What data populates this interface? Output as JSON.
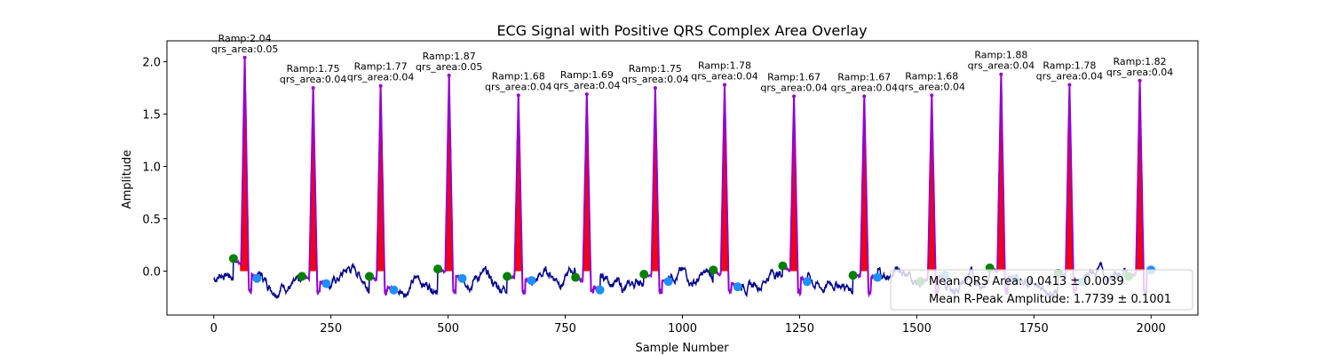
{
  "chart_data": {
    "type": "line",
    "title": "ECG Signal with Positive QRS Complex Area Overlay",
    "xlabel": "Sample Number",
    "ylabel": "Amplitude",
    "xlim": [
      -100,
      2100
    ],
    "ylim": [
      -0.42,
      2.2
    ],
    "xticks": [
      0,
      250,
      500,
      750,
      1000,
      1250,
      1500,
      1750,
      2000
    ],
    "xtick_labels": [
      "0",
      "250",
      "500",
      "750",
      "1000",
      "1250",
      "1500",
      "1750",
      "2000"
    ],
    "yticks": [
      0.0,
      0.5,
      1.0,
      1.5,
      2.0
    ],
    "ytick_labels": [
      "0.0",
      "0.5",
      "1.0",
      "1.5",
      "2.0"
    ],
    "grid": false,
    "series_colors": {
      "ecg": "#00008b",
      "qrs_segment": "#9400d3",
      "qrs_area": "#ff0000",
      "onset_marker": "#008000",
      "offset_marker": "#1e90ff"
    },
    "beats": [
      {
        "r_x": 66,
        "r_amp": 2.04,
        "qrs_area": 0.05,
        "ann": [
          "Ramp:2.04",
          "qrs_area:0.05"
        ],
        "on_x": 42,
        "on_y": 0.12,
        "off_x": 92,
        "off_y": -0.07
      },
      {
        "r_x": 212,
        "r_amp": 1.75,
        "qrs_area": 0.04,
        "ann": [
          "Ramp:1.75",
          "qrs_area:0.04"
        ],
        "on_x": 188,
        "on_y": -0.05,
        "off_x": 240,
        "off_y": -0.12
      },
      {
        "r_x": 356,
        "r_amp": 1.77,
        "qrs_area": 0.04,
        "ann": [
          "Ramp:1.77",
          "qrs_area:0.04"
        ],
        "on_x": 332,
        "on_y": -0.05,
        "off_x": 384,
        "off_y": -0.18
      },
      {
        "r_x": 502,
        "r_amp": 1.87,
        "qrs_area": 0.05,
        "ann": [
          "Ramp:1.87",
          "qrs_area:0.05"
        ],
        "on_x": 478,
        "on_y": 0.02,
        "off_x": 530,
        "off_y": -0.07
      },
      {
        "r_x": 650,
        "r_amp": 1.68,
        "qrs_area": 0.04,
        "ann": [
          "Ramp:1.68",
          "qrs_area:0.04"
        ],
        "on_x": 626,
        "on_y": -0.05,
        "off_x": 678,
        "off_y": -0.09
      },
      {
        "r_x": 796,
        "r_amp": 1.69,
        "qrs_area": 0.04,
        "ann": [
          "Ramp:1.69",
          "qrs_area:0.04"
        ],
        "on_x": 772,
        "on_y": -0.06,
        "off_x": 824,
        "off_y": -0.18
      },
      {
        "r_x": 942,
        "r_amp": 1.75,
        "qrs_area": 0.04,
        "ann": [
          "Ramp:1.75",
          "qrs_area:0.04"
        ],
        "on_x": 918,
        "on_y": -0.03,
        "off_x": 970,
        "off_y": -0.1
      },
      {
        "r_x": 1090,
        "r_amp": 1.78,
        "qrs_area": 0.04,
        "ann": [
          "Ramp:1.78",
          "qrs_area:0.04"
        ],
        "on_x": 1066,
        "on_y": 0.01,
        "off_x": 1118,
        "off_y": -0.15
      },
      {
        "r_x": 1238,
        "r_amp": 1.67,
        "qrs_area": 0.04,
        "ann": [
          "Ramp:1.67",
          "qrs_area:0.04"
        ],
        "on_x": 1214,
        "on_y": 0.05,
        "off_x": 1266,
        "off_y": -0.1
      },
      {
        "r_x": 1388,
        "r_amp": 1.67,
        "qrs_area": 0.04,
        "ann": [
          "Ramp:1.67",
          "qrs_area:0.04"
        ],
        "on_x": 1364,
        "on_y": -0.04,
        "off_x": 1416,
        "off_y": -0.06
      },
      {
        "r_x": 1532,
        "r_amp": 1.68,
        "qrs_area": 0.04,
        "ann": [
          "Ramp:1.68",
          "qrs_area:0.04"
        ],
        "on_x": 1508,
        "on_y": -0.1,
        "off_x": 1560,
        "off_y": -0.04
      },
      {
        "r_x": 1680,
        "r_amp": 1.88,
        "qrs_area": 0.04,
        "ann": [
          "Ramp:1.88",
          "qrs_area:0.04"
        ],
        "on_x": 1656,
        "on_y": 0.03,
        "off_x": 1708,
        "off_y": -0.08
      },
      {
        "r_x": 1826,
        "r_amp": 1.78,
        "qrs_area": 0.04,
        "ann": [
          "Ramp:1.78",
          "qrs_area:0.04"
        ],
        "on_x": 1802,
        "on_y": -0.02,
        "off_x": 1854,
        "off_y": -0.1
      },
      {
        "r_x": 1976,
        "r_amp": 1.82,
        "qrs_area": 0.04,
        "ann": [
          "Ramp:1.82",
          "qrs_area:0.04"
        ],
        "on_x": 1952,
        "on_y": -0.05,
        "off_x": 2000,
        "off_y": 0.01
      }
    ],
    "legend": {
      "placement": "lower-right",
      "entries": [
        "Mean QRS Area: 0.0413 ± 0.0039",
        "Mean R-Peak Amplitude: 1.7739 ± 0.1001"
      ]
    }
  }
}
